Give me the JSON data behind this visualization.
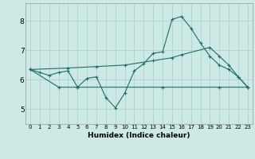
{
  "xlabel": "Humidex (Indice chaleur)",
  "xlim": [
    -0.5,
    23.5
  ],
  "ylim": [
    4.5,
    8.6
  ],
  "yticks": [
    5,
    6,
    7,
    8
  ],
  "xticks": [
    0,
    1,
    2,
    3,
    4,
    5,
    6,
    7,
    8,
    9,
    10,
    11,
    12,
    13,
    14,
    15,
    16,
    17,
    18,
    19,
    20,
    21,
    22,
    23
  ],
  "bg_color": "#cce9e6",
  "line_color": "#1e6e65",
  "grid_color_major": "#aacfcc",
  "grid_color_minor": "#aacfcc",
  "lines": [
    {
      "x": [
        0,
        1,
        2,
        3,
        4,
        5,
        6,
        7,
        8,
        9,
        10,
        11,
        12,
        13,
        14,
        15,
        16,
        17,
        18,
        19,
        20,
        21,
        22,
        23
      ],
      "y": [
        6.35,
        6.25,
        6.15,
        6.25,
        6.3,
        5.75,
        6.05,
        6.1,
        5.4,
        5.05,
        5.55,
        6.3,
        6.55,
        6.9,
        6.95,
        8.05,
        8.15,
        7.75,
        7.25,
        6.8,
        6.5,
        6.35,
        6.1,
        5.75
      ]
    },
    {
      "x": [
        0,
        3,
        5,
        14,
        20,
        23
      ],
      "y": [
        6.35,
        5.75,
        5.75,
        5.75,
        5.75,
        5.75
      ]
    },
    {
      "x": [
        0,
        4,
        7,
        10,
        13,
        15,
        16,
        19,
        20,
        21,
        22,
        23
      ],
      "y": [
        6.35,
        6.4,
        6.45,
        6.5,
        6.65,
        6.75,
        6.85,
        7.1,
        6.8,
        6.5,
        6.1,
        5.75
      ]
    }
  ]
}
